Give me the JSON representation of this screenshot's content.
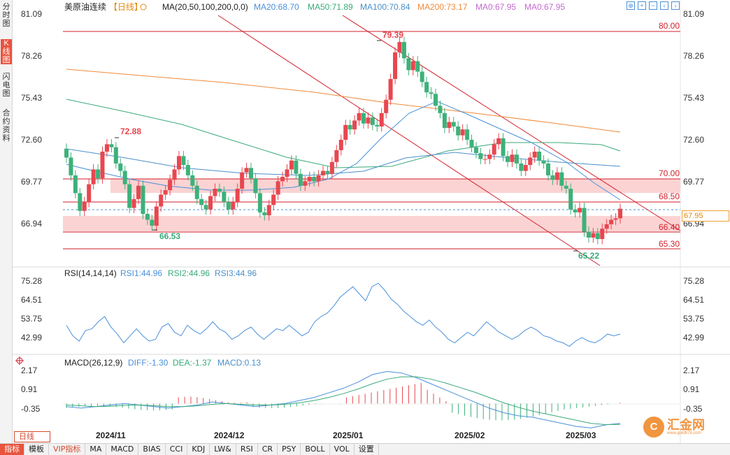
{
  "left_tabs": [
    "分时图",
    "K线图",
    "闪电图",
    "合约资料"
  ],
  "header": {
    "symbol": "美原油连续",
    "period": "【日线】",
    "ma_params": "MA(20,50,100,200,0,0)",
    "ma20": "MA20:68.70",
    "ma50": "MA50:71.89",
    "ma100": "MA100:70.84",
    "ma200": "MA200:73.17",
    "ma_a": "MA0:67.95",
    "ma_b": "MA0:67.95"
  },
  "price_axis": [
    "81.09",
    "78.26",
    "75.43",
    "72.60",
    "69.77",
    "66.94"
  ],
  "current_price": "67.95",
  "annotations": {
    "high": "79.39",
    "high_left": "72.88",
    "low_left": "66.53",
    "low": "65.22"
  },
  "levels": [
    "80.00",
    "70.00",
    "68.50",
    "66.40",
    "65.30"
  ],
  "rsi": {
    "title": "RSI(14,14,14)",
    "rsi1": "RSI1:44.96",
    "rsi2": "RSI2:44.96",
    "rsi3": "RSI3:44.96",
    "axis": [
      "75.28",
      "64.51",
      "53.75",
      "42.99"
    ]
  },
  "macd": {
    "title": "MACD(26,12,9)",
    "diff": "DIFF:-1.30",
    "dea": "DEA:-1.37",
    "macd": "MACD:0.13",
    "axis": [
      "2.17",
      "0.91",
      "-0.35"
    ]
  },
  "x_axis": [
    "2024/11",
    "2024/12",
    "2025/01",
    "2025/02",
    "2025/03"
  ],
  "period_button": "日线",
  "bottom_tabs": [
    "指标",
    "模板",
    "VIP指标",
    "MA",
    "MACD",
    "BIAS",
    "CCI",
    "KDJ",
    "LW&",
    "RSI",
    "CR",
    "PSY",
    "BOLL",
    "VOL",
    "设置"
  ],
  "watermark": {
    "name": "汇金网",
    "url": "www.gold678.com",
    "logo_char": "C"
  },
  "colors": {
    "up": "#e8474f",
    "down": "#3db17a",
    "ma20": "#4a90d9",
    "ma50": "#3aaa7a",
    "ma100": "#4a8fc9",
    "ma200": "#f08a3a",
    "level": "#d21f2b",
    "trend": "#d21f2b",
    "zone": "#f9cccc"
  }
}
